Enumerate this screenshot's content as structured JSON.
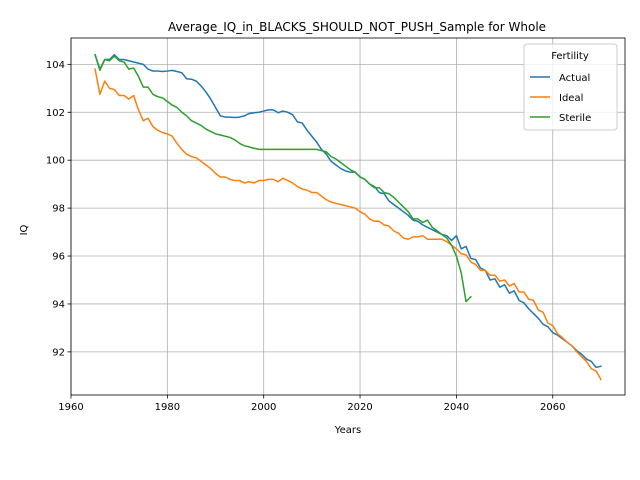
{
  "chart_data": {
    "type": "line",
    "title": "Average_IQ_in_BLACKS_SHOULD_NOT_PUSH_Sample for Whole",
    "xlabel": "Years",
    "ylabel": "IQ",
    "xlim": [
      1960,
      2075
    ],
    "ylim": [
      90.2,
      105.1
    ],
    "x_ticks": [
      1960,
      1980,
      2000,
      2020,
      2040,
      2060
    ],
    "y_ticks": [
      92,
      94,
      96,
      98,
      100,
      102,
      104
    ],
    "grid": true,
    "legend": {
      "title": "Fertility",
      "placement": "top-right"
    },
    "series": [
      {
        "name": "Actual",
        "color": "#1f77b4",
        "points": [
          [
            1965,
            104.4
          ],
          [
            1966,
            103.8
          ],
          [
            1967,
            104.2
          ],
          [
            1968,
            104.2
          ],
          [
            1969,
            104.4
          ],
          [
            1970,
            104.2
          ],
          [
            1971,
            104.2
          ],
          [
            1972,
            104.15
          ],
          [
            1973,
            104.1
          ],
          [
            1974,
            104.05
          ],
          [
            1975,
            104.0
          ],
          [
            1976,
            103.8
          ],
          [
            1977,
            103.72
          ],
          [
            1978,
            103.72
          ],
          [
            1979,
            103.7
          ],
          [
            1980,
            103.72
          ],
          [
            1981,
            103.75
          ],
          [
            1982,
            103.7
          ],
          [
            1983,
            103.65
          ],
          [
            1984,
            103.4
          ],
          [
            1985,
            103.38
          ],
          [
            1986,
            103.3
          ],
          [
            1987,
            103.1
          ],
          [
            1988,
            102.85
          ],
          [
            1989,
            102.55
          ],
          [
            1990,
            102.2
          ],
          [
            1991,
            101.85
          ],
          [
            1992,
            101.8
          ],
          [
            1993,
            101.8
          ],
          [
            1994,
            101.78
          ],
          [
            1995,
            101.8
          ],
          [
            1996,
            101.85
          ],
          [
            1997,
            101.95
          ],
          [
            1998,
            101.98
          ],
          [
            1999,
            102.0
          ],
          [
            2000,
            102.05
          ],
          [
            2001,
            102.1
          ],
          [
            2002,
            102.1
          ],
          [
            2003,
            101.98
          ],
          [
            2004,
            102.05
          ],
          [
            2005,
            102.0
          ],
          [
            2006,
            101.9
          ],
          [
            2007,
            101.6
          ],
          [
            2008,
            101.55
          ],
          [
            2009,
            101.25
          ],
          [
            2010,
            101.0
          ],
          [
            2011,
            100.75
          ],
          [
            2012,
            100.45
          ],
          [
            2013,
            100.25
          ],
          [
            2014,
            99.95
          ],
          [
            2015,
            99.8
          ],
          [
            2016,
            99.65
          ],
          [
            2017,
            99.55
          ],
          [
            2018,
            99.5
          ],
          [
            2019,
            99.5
          ],
          [
            2020,
            99.3
          ],
          [
            2021,
            99.2
          ],
          [
            2022,
            99.0
          ],
          [
            2023,
            98.9
          ],
          [
            2024,
            98.65
          ],
          [
            2025,
            98.6
          ],
          [
            2026,
            98.3
          ],
          [
            2027,
            98.15
          ],
          [
            2028,
            98.0
          ],
          [
            2029,
            97.85
          ],
          [
            2030,
            97.7
          ],
          [
            2031,
            97.5
          ],
          [
            2032,
            97.45
          ],
          [
            2033,
            97.3
          ],
          [
            2034,
            97.2
          ],
          [
            2035,
            97.1
          ],
          [
            2036,
            97.0
          ],
          [
            2037,
            96.9
          ],
          [
            2038,
            96.85
          ],
          [
            2039,
            96.65
          ],
          [
            2040,
            96.85
          ],
          [
            2041,
            96.3
          ],
          [
            2042,
            96.4
          ],
          [
            2043,
            95.9
          ],
          [
            2044,
            95.85
          ],
          [
            2045,
            95.5
          ],
          [
            2046,
            95.4
          ],
          [
            2047,
            95.0
          ],
          [
            2048,
            95.05
          ],
          [
            2049,
            94.7
          ],
          [
            2050,
            94.8
          ],
          [
            2051,
            94.45
          ],
          [
            2052,
            94.55
          ],
          [
            2053,
            94.15
          ],
          [
            2054,
            94.05
          ],
          [
            2055,
            93.8
          ],
          [
            2056,
            93.6
          ],
          [
            2057,
            93.4
          ],
          [
            2058,
            93.15
          ],
          [
            2059,
            93.05
          ],
          [
            2060,
            92.8
          ],
          [
            2061,
            92.7
          ],
          [
            2062,
            92.55
          ],
          [
            2063,
            92.4
          ],
          [
            2064,
            92.25
          ],
          [
            2065,
            92.05
          ],
          [
            2066,
            91.9
          ],
          [
            2067,
            91.7
          ],
          [
            2068,
            91.6
          ],
          [
            2069,
            91.35
          ],
          [
            2070,
            91.4
          ]
        ]
      },
      {
        "name": "Ideal",
        "color": "#ff7f0e",
        "points": [
          [
            1965,
            103.8
          ],
          [
            1966,
            102.75
          ],
          [
            1967,
            103.3
          ],
          [
            1968,
            103.0
          ],
          [
            1969,
            102.95
          ],
          [
            1970,
            102.7
          ],
          [
            1971,
            102.7
          ],
          [
            1972,
            102.55
          ],
          [
            1973,
            102.7
          ],
          [
            1974,
            102.1
          ],
          [
            1975,
            101.65
          ],
          [
            1976,
            101.75
          ],
          [
            1977,
            101.4
          ],
          [
            1978,
            101.25
          ],
          [
            1979,
            101.15
          ],
          [
            1980,
            101.1
          ],
          [
            1981,
            101.0
          ],
          [
            1982,
            100.7
          ],
          [
            1983,
            100.45
          ],
          [
            1984,
            100.25
          ],
          [
            1985,
            100.15
          ],
          [
            1986,
            100.1
          ],
          [
            1987,
            99.95
          ],
          [
            1988,
            99.8
          ],
          [
            1989,
            99.65
          ],
          [
            1990,
            99.45
          ],
          [
            1991,
            99.3
          ],
          [
            1992,
            99.3
          ],
          [
            1993,
            99.2
          ],
          [
            1994,
            99.15
          ],
          [
            1995,
            99.15
          ],
          [
            1996,
            99.05
          ],
          [
            1997,
            99.1
          ],
          [
            1998,
            99.05
          ],
          [
            1999,
            99.15
          ],
          [
            2000,
            99.15
          ],
          [
            2001,
            99.2
          ],
          [
            2002,
            99.2
          ],
          [
            2003,
            99.1
          ],
          [
            2004,
            99.25
          ],
          [
            2005,
            99.15
          ],
          [
            2006,
            99.05
          ],
          [
            2007,
            98.9
          ],
          [
            2008,
            98.8
          ],
          [
            2009,
            98.75
          ],
          [
            2010,
            98.65
          ],
          [
            2011,
            98.65
          ],
          [
            2012,
            98.5
          ],
          [
            2013,
            98.35
          ],
          [
            2014,
            98.25
          ],
          [
            2015,
            98.2
          ],
          [
            2016,
            98.15
          ],
          [
            2017,
            98.1
          ],
          [
            2018,
            98.05
          ],
          [
            2019,
            98.0
          ],
          [
            2020,
            97.85
          ],
          [
            2021,
            97.75
          ],
          [
            2022,
            97.55
          ],
          [
            2023,
            97.45
          ],
          [
            2024,
            97.45
          ],
          [
            2025,
            97.3
          ],
          [
            2026,
            97.25
          ],
          [
            2027,
            97.05
          ],
          [
            2028,
            96.95
          ],
          [
            2029,
            96.75
          ],
          [
            2030,
            96.7
          ],
          [
            2031,
            96.8
          ],
          [
            2032,
            96.8
          ],
          [
            2033,
            96.85
          ],
          [
            2034,
            96.7
          ],
          [
            2035,
            96.7
          ],
          [
            2036,
            96.7
          ],
          [
            2037,
            96.7
          ],
          [
            2038,
            96.6
          ],
          [
            2039,
            96.45
          ],
          [
            2040,
            96.3
          ],
          [
            2041,
            96.1
          ],
          [
            2042,
            96.05
          ],
          [
            2043,
            95.75
          ],
          [
            2044,
            95.65
          ],
          [
            2045,
            95.4
          ],
          [
            2046,
            95.4
          ],
          [
            2047,
            95.2
          ],
          [
            2048,
            95.2
          ],
          [
            2049,
            94.95
          ],
          [
            2050,
            95.0
          ],
          [
            2051,
            94.75
          ],
          [
            2052,
            94.85
          ],
          [
            2053,
            94.5
          ],
          [
            2054,
            94.5
          ],
          [
            2055,
            94.2
          ],
          [
            2056,
            94.15
          ],
          [
            2057,
            93.75
          ],
          [
            2058,
            93.65
          ],
          [
            2059,
            93.2
          ],
          [
            2060,
            93.1
          ],
          [
            2061,
            92.75
          ],
          [
            2062,
            92.6
          ],
          [
            2063,
            92.4
          ],
          [
            2064,
            92.25
          ],
          [
            2065,
            92.0
          ],
          [
            2066,
            91.8
          ],
          [
            2067,
            91.6
          ],
          [
            2068,
            91.3
          ],
          [
            2069,
            91.2
          ],
          [
            2070,
            90.85
          ]
        ]
      },
      {
        "name": "Sterile",
        "color": "#2ca02c",
        "points": [
          [
            1965,
            104.4
          ],
          [
            1966,
            103.75
          ],
          [
            1967,
            104.2
          ],
          [
            1968,
            104.15
          ],
          [
            1969,
            104.35
          ],
          [
            1970,
            104.15
          ],
          [
            1971,
            104.1
          ],
          [
            1972,
            103.8
          ],
          [
            1973,
            103.85
          ],
          [
            1974,
            103.5
          ],
          [
            1975,
            103.05
          ],
          [
            1976,
            103.05
          ],
          [
            1977,
            102.75
          ],
          [
            1978,
            102.65
          ],
          [
            1979,
            102.6
          ],
          [
            1980,
            102.45
          ],
          [
            1981,
            102.3
          ],
          [
            1982,
            102.2
          ],
          [
            1983,
            102.0
          ],
          [
            1984,
            101.85
          ],
          [
            1985,
            101.65
          ],
          [
            1986,
            101.55
          ],
          [
            1987,
            101.45
          ],
          [
            1988,
            101.3
          ],
          [
            1989,
            101.2
          ],
          [
            1990,
            101.1
          ],
          [
            1991,
            101.05
          ],
          [
            1992,
            101.0
          ],
          [
            1993,
            100.95
          ],
          [
            1994,
            100.85
          ],
          [
            1995,
            100.7
          ],
          [
            1996,
            100.6
          ],
          [
            1997,
            100.55
          ],
          [
            1998,
            100.5
          ],
          [
            1999,
            100.45
          ],
          [
            2000,
            100.45
          ],
          [
            2001,
            100.45
          ],
          [
            2002,
            100.45
          ],
          [
            2003,
            100.45
          ],
          [
            2004,
            100.45
          ],
          [
            2005,
            100.45
          ],
          [
            2006,
            100.45
          ],
          [
            2007,
            100.45
          ],
          [
            2008,
            100.45
          ],
          [
            2009,
            100.45
          ],
          [
            2010,
            100.45
          ],
          [
            2011,
            100.45
          ],
          [
            2012,
            100.4
          ],
          [
            2013,
            100.35
          ],
          [
            2014,
            100.15
          ],
          [
            2015,
            100.05
          ],
          [
            2016,
            99.9
          ],
          [
            2017,
            99.75
          ],
          [
            2018,
            99.6
          ],
          [
            2019,
            99.5
          ],
          [
            2020,
            99.3
          ],
          [
            2021,
            99.2
          ],
          [
            2022,
            99.0
          ],
          [
            2023,
            98.85
          ],
          [
            2024,
            98.85
          ],
          [
            2025,
            98.65
          ],
          [
            2026,
            98.6
          ],
          [
            2027,
            98.45
          ],
          [
            2028,
            98.25
          ],
          [
            2029,
            98.05
          ],
          [
            2030,
            97.85
          ],
          [
            2031,
            97.55
          ],
          [
            2032,
            97.55
          ],
          [
            2033,
            97.4
          ],
          [
            2034,
            97.5
          ],
          [
            2035,
            97.2
          ],
          [
            2036,
            97.05
          ],
          [
            2037,
            96.9
          ],
          [
            2038,
            96.75
          ],
          [
            2039,
            96.45
          ],
          [
            2040,
            96.0
          ],
          [
            2041,
            95.3
          ],
          [
            2042,
            94.1
          ],
          [
            2043,
            94.3
          ]
        ]
      }
    ]
  }
}
